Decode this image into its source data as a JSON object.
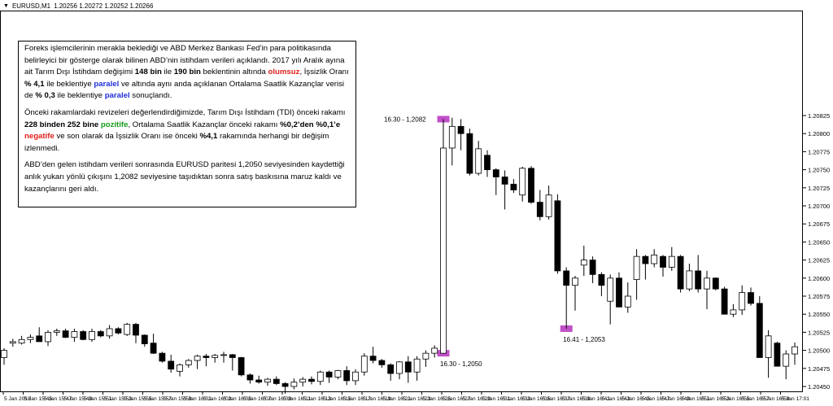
{
  "header": {
    "symbol": "EURUSD,M1",
    "ohlc": "1.20256 1.20272 1.20252 1.20266"
  },
  "info": {
    "p1": [
      {
        "t": "Foreks işlemcilerinin merakla beklediği ve ABD Merkez Bankası Fed’in para politikasında belirleyici bir gösterge olarak bilinen ABD’nin istihdam verileri açıklandı. 2017 yılı Aralık ayına ait Tarım Dışı İstihdam değişimi ",
        "s": ""
      },
      {
        "t": "148 bin",
        "s": "b"
      },
      {
        "t": " ile ",
        "s": ""
      },
      {
        "t": "190 bin",
        "s": "b"
      },
      {
        "t": " beklentinin altında ",
        "s": ""
      },
      {
        "t": "olumsuz",
        "s": "red"
      },
      {
        "t": ", İşsizlik Oranı ",
        "s": ""
      },
      {
        "t": "% 4,1",
        "s": "b"
      },
      {
        "t": " ile beklentiye ",
        "s": ""
      },
      {
        "t": "paralel",
        "s": "blue"
      },
      {
        "t": " ve altında aynı anda açıklanan Ortalama Saatlik Kazançlar verisi de ",
        "s": ""
      },
      {
        "t": "% 0,3",
        "s": "b"
      },
      {
        "t": " ile beklentiye ",
        "s": ""
      },
      {
        "t": "paralel",
        "s": "blue"
      },
      {
        "t": " sonuçlandı.",
        "s": ""
      }
    ],
    "p2": [
      {
        "t": "Önceki rakamlardaki revizeleri değerlendirdiğimizde, Tarım Dışı İstihdam (TDI) önceki rakamı ",
        "s": ""
      },
      {
        "t": "228 binden 252 bine",
        "s": "b"
      },
      {
        "t": " ",
        "s": ""
      },
      {
        "t": "pozitife",
        "s": "green"
      },
      {
        "t": ",  Ortalama Saatlik Kazançlar önceki rakamı ",
        "s": ""
      },
      {
        "t": "%0,2’den %0,1’e",
        "s": "b"
      },
      {
        "t": " ",
        "s": ""
      },
      {
        "t": "negatife",
        "s": "red"
      },
      {
        "t": " ve son olarak da İşsizlik Oranı ise önceki  ",
        "s": ""
      },
      {
        "t": "%4,1",
        "s": "b"
      },
      {
        "t": " rakamında herhangi bir değişim izlenmedi.",
        "s": ""
      }
    ],
    "p3": [
      {
        "t": "ABD’den gelen istihdam verileri sonrasında EURUSD paritesi 1,2050 seviyesinden kaydettiği anlık yukarı yönlü çıkışını 1,2082 seviyesine taşıdıktan sonra satış baskısına maruz kaldı ve kazançlarını geri aldı.",
        "s": ""
      }
    ]
  },
  "colors": {
    "bull_fill": "#ffffff",
    "bear_fill": "#000000",
    "wick": "#000000",
    "highlight": "#c150c8",
    "grid_axis": "#000000"
  },
  "chart_data": {
    "type": "candlestick",
    "timeframe": "M1",
    "y_range": [
      1.20425,
      1.20835
    ],
    "y_ticks": [
      "1.20825",
      "1.20800",
      "1.20775",
      "1.20750",
      "1.20725",
      "1.20700",
      "1.20675",
      "1.20650",
      "1.20625",
      "1.20600",
      "1.20575",
      "1.20550",
      "1.20525",
      "1.20500",
      "1.20475",
      "1.20450"
    ],
    "x_ticks": [
      "5 Jan 2018",
      "5 Jan 15:45",
      "5 Jan 15:47",
      "5 Jan 15:49",
      "5 Jan 15:51",
      "5 Jan 15:53",
      "5 Jan 15:55",
      "5 Jan 15:57",
      "5 Jan 15:59",
      "5 Jan 16:01",
      "5 Jan 16:03",
      "5 Jan 16:05",
      "5 Jan 16:07",
      "5 Jan 16:09",
      "5 Jan 16:11",
      "5 Jan 16:13",
      "5 Jan 16:15",
      "5 Jan 16:17",
      "5 Jan 16:19",
      "5 Jan 16:21",
      "5 Jan 16:23",
      "5 Jan 16:25",
      "5 Jan 16:27",
      "5 Jan 16:29",
      "5 Jan 16:31",
      "5 Jan 16:33",
      "5 Jan 16:35",
      "5 Jan 16:37",
      "5 Jan 16:39",
      "5 Jan 16:41",
      "5 Jan 16:43",
      "5 Jan 16:45",
      "5 Jan 16:47",
      "5 Jan 16:49",
      "5 Jan 16:51",
      "5 Jan 16:53",
      "5 Jan 16:55",
      "5 Jan 16:57",
      "5 Jan 16:59",
      "5 Jan 17:01"
    ],
    "candles": [
      [
        1.2049,
        1.20503,
        1.2048,
        1.205
      ],
      [
        1.2051,
        1.20516,
        1.20505,
        1.20512
      ],
      [
        1.2051,
        1.2052,
        1.20508,
        1.20515
      ],
      [
        1.20515,
        1.20522,
        1.2051,
        1.20518
      ],
      [
        1.2052,
        1.20532,
        1.20513,
        1.20512
      ],
      [
        1.20512,
        1.20528,
        1.20506,
        1.20525
      ],
      [
        1.20525,
        1.2053,
        1.2052,
        1.20527
      ],
      [
        1.20527,
        1.2053,
        1.20517,
        1.20518
      ],
      [
        1.20518,
        1.2053,
        1.20512,
        1.20526
      ],
      [
        1.20526,
        1.20528,
        1.20514,
        1.20515
      ],
      [
        1.20515,
        1.2053,
        1.20512,
        1.20526
      ],
      [
        1.20526,
        1.20528,
        1.20518,
        1.2052
      ],
      [
        1.2052,
        1.20535,
        1.20516,
        1.2053
      ],
      [
        1.2053,
        1.20532,
        1.20522,
        1.20524
      ],
      [
        1.20522,
        1.20538,
        1.2052,
        1.20536
      ],
      [
        1.20536,
        1.20538,
        1.2051,
        1.20521
      ],
      [
        1.20521,
        1.20522,
        1.20505,
        1.20509
      ],
      [
        1.2051,
        1.20523,
        1.20495,
        1.20496
      ],
      [
        1.20496,
        1.20498,
        1.20483,
        1.20485
      ],
      [
        1.20485,
        1.20494,
        1.20469,
        1.20474
      ],
      [
        1.20471,
        1.20482,
        1.20464,
        1.2048
      ],
      [
        1.2048,
        1.20488,
        1.20476,
        1.20486
      ],
      [
        1.20486,
        1.20494,
        1.20474,
        1.20492
      ],
      [
        1.20492,
        1.20495,
        1.20478,
        1.2049
      ],
      [
        1.2049,
        1.20495,
        1.20483,
        1.20493
      ],
      [
        1.20493,
        1.20498,
        1.20483,
        1.20494
      ],
      [
        1.20494,
        1.20495,
        1.20472,
        1.2049
      ],
      [
        1.2049,
        1.20491,
        1.20464,
        1.20466
      ],
      [
        1.20466,
        1.20468,
        1.20454,
        1.20459
      ],
      [
        1.20459,
        1.20465,
        1.20454,
        1.20456
      ],
      [
        1.20456,
        1.20462,
        1.20451,
        1.2046
      ],
      [
        1.2046,
        1.20464,
        1.20452,
        1.20454
      ],
      [
        1.20454,
        1.20456,
        1.2044,
        1.2045
      ],
      [
        1.2045,
        1.20461,
        1.20446,
        1.20456
      ],
      [
        1.20456,
        1.20463,
        1.2045,
        1.2046
      ],
      [
        1.2046,
        1.20464,
        1.20453,
        1.20457
      ],
      [
        1.20457,
        1.20472,
        1.20452,
        1.2047
      ],
      [
        1.2047,
        1.20472,
        1.20455,
        1.20463
      ],
      [
        1.20463,
        1.20473,
        1.2046,
        1.20472
      ],
      [
        1.20472,
        1.20478,
        1.20452,
        1.20458
      ],
      [
        1.20458,
        1.20474,
        1.20452,
        1.2047
      ],
      [
        1.2047,
        1.20496,
        1.20465,
        1.20492
      ],
      [
        1.20492,
        1.20505,
        1.20482,
        1.20486
      ],
      [
        1.20486,
        1.20488,
        1.20476,
        1.2048
      ],
      [
        1.2048,
        1.20482,
        1.20458,
        1.20468
      ],
      [
        1.20468,
        1.20485,
        1.2046,
        1.20484
      ],
      [
        1.20484,
        1.20492,
        1.20455,
        1.2047
      ],
      [
        1.2047,
        1.20492,
        1.20458,
        1.20488
      ],
      [
        1.20488,
        1.205,
        1.20477,
        1.20496
      ],
      [
        1.20496,
        1.20507,
        1.2049,
        1.20503
      ],
      [
        1.20496,
        1.2082,
        1.20496,
        1.2078
      ],
      [
        1.2078,
        1.20822,
        1.20756,
        1.2081
      ],
      [
        1.2081,
        1.2082,
        1.20777,
        1.208
      ],
      [
        1.208,
        1.20807,
        1.20742,
        1.20745
      ],
      [
        1.20745,
        1.2079,
        1.20742,
        1.20779
      ],
      [
        1.2077,
        1.20777,
        1.2074,
        1.2075
      ],
      [
        1.2075,
        1.20752,
        1.20715,
        1.2074
      ],
      [
        1.2074,
        1.20749,
        1.20695,
        1.2073
      ],
      [
        1.2073,
        1.20737,
        1.20718,
        1.20722
      ],
      [
        1.20715,
        1.20754,
        1.20706,
        1.20752
      ],
      [
        1.20752,
        1.20755,
        1.20703,
        1.20705
      ],
      [
        1.20705,
        1.20722,
        1.2068,
        1.20685
      ],
      [
        1.20685,
        1.20728,
        1.20681,
        1.20715
      ],
      [
        1.20707,
        1.20716,
        1.20606,
        1.2061
      ],
      [
        1.2061,
        1.20615,
        1.2053,
        1.2059
      ],
      [
        1.2059,
        1.20603,
        1.20555,
        1.206
      ],
      [
        1.20618,
        1.20645,
        1.20603,
        1.20625
      ],
      [
        1.20625,
        1.2063,
        1.20593,
        1.20605
      ],
      [
        1.20605,
        1.20608,
        1.20575,
        1.2059
      ],
      [
        1.20568,
        1.20605,
        1.20536,
        1.206
      ],
      [
        1.206,
        1.20608,
        1.2056,
        1.2056
      ],
      [
        1.2056,
        1.20594,
        1.20552,
        1.20575
      ],
      [
        1.20598,
        1.2064,
        1.2057,
        1.2063
      ],
      [
        1.2063,
        1.20632,
        1.20598,
        1.2062
      ],
      [
        1.2062,
        1.2064,
        1.20615,
        1.20632
      ],
      [
        1.2063,
        1.20632,
        1.20602,
        1.20615
      ],
      [
        1.20615,
        1.20643,
        1.2061,
        1.2063
      ],
      [
        1.2063,
        1.20632,
        1.2058,
        1.20585
      ],
      [
        1.20585,
        1.2062,
        1.20582,
        1.2061
      ],
      [
        1.2061,
        1.20632,
        1.2058,
        1.20585
      ],
      [
        1.20585,
        1.2061,
        1.20557,
        1.206
      ],
      [
        1.206,
        1.20601,
        1.20583,
        1.20585
      ],
      [
        1.20585,
        1.20588,
        1.2055,
        1.2055
      ],
      [
        1.2055,
        1.20564,
        1.20546,
        1.20556
      ],
      [
        1.20556,
        1.2059,
        1.20549,
        1.2058
      ],
      [
        1.2058,
        1.20587,
        1.20562,
        1.20565
      ],
      [
        1.20565,
        1.20575,
        1.2049,
        1.2049
      ],
      [
        1.2049,
        1.20528,
        1.20462,
        1.2052
      ],
      [
        1.2051,
        1.20512,
        1.20478,
        1.20478
      ],
      [
        1.20478,
        1.205,
        1.2046,
        1.20495
      ],
      [
        1.20495,
        1.20511,
        1.2048,
        1.20505
      ]
    ],
    "annotations": [
      {
        "label": "16.30 - 1,2082",
        "price": 1.2082,
        "candle": 50,
        "pos": "above"
      },
      {
        "label": "16.30 - 1,2050",
        "price": 1.20496,
        "candle": 50,
        "pos": "below"
      },
      {
        "label": "16.41 - 1,2053",
        "price": 1.2053,
        "candle": 64,
        "pos": "below"
      }
    ]
  }
}
